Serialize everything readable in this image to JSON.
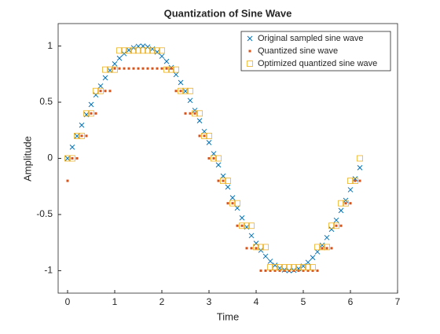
{
  "chart_data": {
    "type": "scatter",
    "title": "Quantization of Sine Wave",
    "xlabel": "Time",
    "ylabel": "Amplitude",
    "x": [
      0,
      0.1,
      0.2,
      0.3,
      0.4,
      0.5,
      0.6,
      0.7,
      0.8,
      0.9,
      1,
      1.1,
      1.2,
      1.3,
      1.4,
      1.5,
      1.6,
      1.7,
      1.8,
      1.9,
      2,
      2.1,
      2.2,
      2.3,
      2.4,
      2.5,
      2.6,
      2.7,
      2.8,
      2.9,
      3,
      3.1,
      3.2,
      3.3,
      3.4,
      3.5,
      3.6,
      3.7,
      3.8,
      3.9,
      4,
      4.1,
      4.2,
      4.3,
      4.4,
      4.5,
      4.6,
      4.7,
      4.8,
      4.9,
      5,
      5.1,
      5.2,
      5.3,
      5.4,
      5.5,
      5.6,
      5.7,
      5.8,
      5.9,
      6,
      6.1,
      6.2
    ],
    "series": [
      {
        "name": "Original sampled sine wave",
        "color": "#0072BD",
        "marker": "x",
        "values": [
          0,
          0.0998,
          0.1987,
          0.2955,
          0.3894,
          0.4794,
          0.5646,
          0.6442,
          0.7174,
          0.7833,
          0.8415,
          0.8912,
          0.932,
          0.9636,
          0.9854,
          0.9975,
          0.9996,
          0.9917,
          0.9738,
          0.9463,
          0.9093,
          0.8632,
          0.8085,
          0.7457,
          0.6755,
          0.5985,
          0.5155,
          0.4274,
          0.335,
          0.2392,
          0.1411,
          0.0416,
          -0.0584,
          -0.1577,
          -0.2555,
          -0.3508,
          -0.4425,
          -0.5298,
          -0.6119,
          -0.6878,
          -0.7568,
          -0.8183,
          -0.8716,
          -0.9162,
          -0.9516,
          -0.9775,
          -0.9937,
          -0.9999,
          -0.9962,
          -0.9825,
          -0.9589,
          -0.9258,
          -0.8835,
          -0.8323,
          -0.7728,
          -0.7055,
          -0.6313,
          -0.5507,
          -0.4646,
          -0.3739,
          -0.2794,
          -0.1822,
          -0.0831
        ]
      },
      {
        "name": "Quantized sine wave",
        "color": "#D95319",
        "marker": "point",
        "values": [
          -0.2,
          0,
          0,
          0.2,
          0.2,
          0.4,
          0.4,
          0.6,
          0.6,
          0.6,
          0.8,
          0.8,
          0.8,
          0.8,
          0.8,
          0.8,
          0.8,
          0.8,
          0.8,
          0.8,
          0.8,
          0.8,
          0.8,
          0.6,
          0.6,
          0.4,
          0.4,
          0.4,
          0.2,
          0.2,
          0,
          0,
          -0.2,
          -0.2,
          -0.4,
          -0.4,
          -0.6,
          -0.6,
          -0.8,
          -0.8,
          -0.8,
          -1,
          -1,
          -1,
          -1,
          -1,
          -1,
          -1,
          -1,
          -1,
          -1,
          -1,
          -1,
          -1,
          -0.8,
          -0.8,
          -0.8,
          -0.6,
          -0.6,
          -0.4,
          -0.4,
          -0.2,
          -0.2
        ]
      },
      {
        "name": "Optimized quantized sine wave",
        "color": "#EDB120",
        "marker": "square",
        "values": [
          0,
          0,
          0.2,
          0.2,
          0.4,
          0.4,
          0.6,
          0.6,
          0.79,
          0.79,
          0.79,
          0.96,
          0.96,
          0.96,
          0.96,
          0.96,
          0.96,
          0.96,
          0.96,
          0.96,
          0.96,
          0.79,
          0.79,
          0.79,
          0.6,
          0.6,
          0.6,
          0.4,
          0.4,
          0.2,
          0.2,
          0,
          0,
          -0.2,
          -0.2,
          -0.4,
          -0.4,
          -0.6,
          -0.6,
          -0.6,
          -0.79,
          -0.79,
          -0.79,
          -0.97,
          -0.97,
          -0.97,
          -0.97,
          -0.97,
          -0.97,
          -0.97,
          -0.97,
          -0.97,
          -0.97,
          -0.79,
          -0.79,
          -0.79,
          -0.6,
          -0.6,
          -0.4,
          -0.4,
          -0.2,
          -0.2,
          0
        ]
      }
    ],
    "xlim": [
      -0.2,
      7
    ],
    "xticks": [
      0,
      1,
      2,
      3,
      4,
      5,
      6,
      7
    ],
    "ylim": [
      -1.2,
      1.2
    ],
    "yticks": [
      -1,
      -0.5,
      0,
      0.5,
      1
    ],
    "legend": "top-right"
  }
}
